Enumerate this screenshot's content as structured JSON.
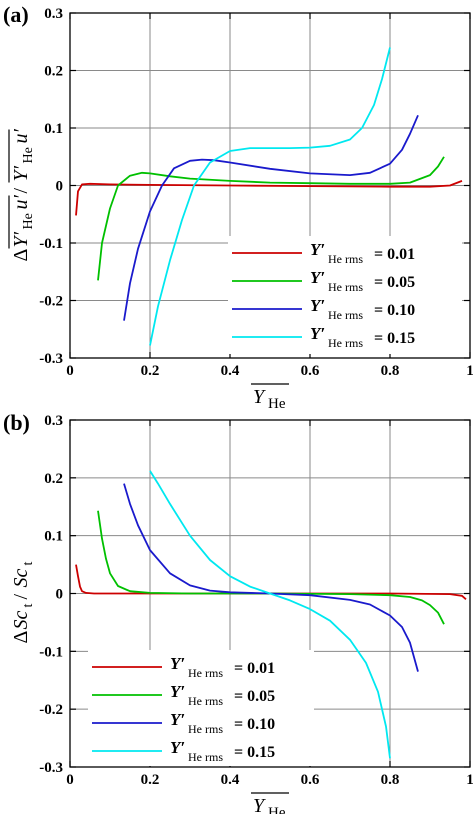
{
  "chart_data": [
    {
      "panel_label": "(a)",
      "type": "line",
      "xlabel": "Y_He (mean)",
      "ylabel": "ΔY'_He u' / Y'_He u'",
      "xlim": [
        0,
        1
      ],
      "ylim": [
        -0.3,
        0.3
      ],
      "xticks": [
        "0",
        "0.2",
        "0.4",
        "0.6",
        "0.8",
        "1"
      ],
      "yticks": [
        "-0.3",
        "-0.2",
        "-0.1",
        "0",
        "0.1",
        "0.2",
        "0.3"
      ],
      "grid": true,
      "legend_position": "bottom-right",
      "series": [
        {
          "name": "Y'He rms = 0.01",
          "color": "#cc0000",
          "x": [
            0.015,
            0.02,
            0.03,
            0.05,
            0.1,
            0.2,
            0.4,
            0.6,
            0.8,
            0.9,
            0.95,
            0.98
          ],
          "y": [
            -0.052,
            -0.01,
            0.002,
            0.003,
            0.002,
            0.001,
            0.0,
            -0.001,
            -0.002,
            -0.002,
            0.0,
            0.008
          ]
        },
        {
          "name": "Y'He rms = 0.05",
          "color": "#00c000",
          "x": [
            0.07,
            0.08,
            0.1,
            0.12,
            0.15,
            0.18,
            0.2,
            0.25,
            0.3,
            0.4,
            0.5,
            0.6,
            0.7,
            0.8,
            0.85,
            0.9,
            0.92,
            0.935
          ],
          "y": [
            -0.165,
            -0.1,
            -0.04,
            0.0,
            0.017,
            0.022,
            0.021,
            0.016,
            0.012,
            0.008,
            0.005,
            0.004,
            0.003,
            0.003,
            0.005,
            0.018,
            0.033,
            0.05
          ]
        },
        {
          "name": "Y'He rms = 0.10",
          "color": "#1a1acc",
          "x": [
            0.135,
            0.15,
            0.17,
            0.2,
            0.23,
            0.26,
            0.3,
            0.33,
            0.36,
            0.4,
            0.5,
            0.6,
            0.7,
            0.75,
            0.8,
            0.83,
            0.85,
            0.87
          ],
          "y": [
            -0.235,
            -0.17,
            -0.11,
            -0.045,
            0.0,
            0.03,
            0.043,
            0.045,
            0.044,
            0.04,
            0.029,
            0.021,
            0.018,
            0.022,
            0.038,
            0.062,
            0.09,
            0.122
          ]
        },
        {
          "name": "Y'He rms = 0.15",
          "color": "#00e8f0",
          "x": [
            0.2,
            0.22,
            0.25,
            0.28,
            0.31,
            0.35,
            0.4,
            0.45,
            0.5,
            0.55,
            0.6,
            0.65,
            0.7,
            0.73,
            0.76,
            0.78,
            0.8
          ],
          "y": [
            -0.278,
            -0.21,
            -0.13,
            -0.06,
            0.0,
            0.04,
            0.06,
            0.065,
            0.065,
            0.065,
            0.066,
            0.069,
            0.08,
            0.1,
            0.14,
            0.185,
            0.24
          ]
        }
      ]
    },
    {
      "panel_label": "(b)",
      "type": "line",
      "xlabel": "Y_He (mean)",
      "ylabel": "ΔSc_t / Sc_t",
      "xlim": [
        0,
        1
      ],
      "ylim": [
        -0.3,
        0.3
      ],
      "xticks": [
        "0",
        "0.2",
        "0.4",
        "0.6",
        "0.8",
        "1"
      ],
      "yticks": [
        "-0.3",
        "-0.2",
        "-0.1",
        "0",
        "0.1",
        "0.2",
        "0.3"
      ],
      "grid": true,
      "legend_position": "bottom-left",
      "series": [
        {
          "name": "Y'He rms = 0.01",
          "color": "#cc0000",
          "x": [
            0.015,
            0.02,
            0.025,
            0.03,
            0.04,
            0.06,
            0.2,
            0.5,
            0.8,
            0.95,
            0.98,
            0.99
          ],
          "y": [
            0.05,
            0.03,
            0.012,
            0.004,
            0.001,
            0.0,
            0.0,
            0.0,
            0.0,
            -0.001,
            -0.004,
            -0.01
          ]
        },
        {
          "name": "Y'He rms = 0.05",
          "color": "#00c000",
          "x": [
            0.07,
            0.08,
            0.09,
            0.1,
            0.12,
            0.15,
            0.2,
            0.3,
            0.5,
            0.7,
            0.8,
            0.85,
            0.88,
            0.9,
            0.92,
            0.935
          ],
          "y": [
            0.143,
            0.095,
            0.06,
            0.035,
            0.013,
            0.004,
            0.001,
            0.0,
            0.0,
            -0.001,
            -0.003,
            -0.006,
            -0.012,
            -0.02,
            -0.033,
            -0.053
          ]
        },
        {
          "name": "Y'He rms = 0.10",
          "color": "#1a1acc",
          "x": [
            0.135,
            0.15,
            0.17,
            0.2,
            0.25,
            0.3,
            0.35,
            0.4,
            0.5,
            0.6,
            0.7,
            0.75,
            0.8,
            0.83,
            0.85,
            0.87
          ],
          "y": [
            0.19,
            0.155,
            0.118,
            0.075,
            0.035,
            0.014,
            0.005,
            0.002,
            0.0,
            -0.003,
            -0.011,
            -0.019,
            -0.038,
            -0.058,
            -0.085,
            -0.135
          ]
        },
        {
          "name": "Y'He rms = 0.15",
          "color": "#00e8f0",
          "x": [
            0.2,
            0.22,
            0.25,
            0.3,
            0.35,
            0.4,
            0.45,
            0.5,
            0.55,
            0.6,
            0.65,
            0.7,
            0.74,
            0.77,
            0.79,
            0.8
          ],
          "y": [
            0.212,
            0.19,
            0.155,
            0.1,
            0.058,
            0.03,
            0.012,
            0.0,
            -0.012,
            -0.027,
            -0.047,
            -0.08,
            -0.12,
            -0.17,
            -0.23,
            -0.285
          ]
        }
      ]
    }
  ],
  "legend_labels": {
    "prefix": "Y′",
    "subscript": "He rms",
    "values": [
      "= 0.01",
      "= 0.05",
      "= 0.10",
      "= 0.15"
    ]
  }
}
